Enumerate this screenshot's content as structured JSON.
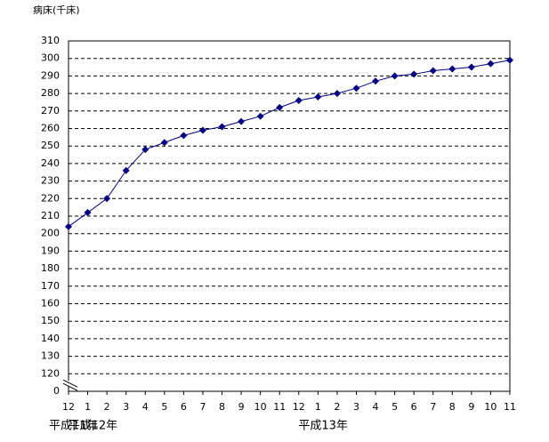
{
  "chart_data": {
    "type": "line",
    "y_axis_label": "病床(千床)",
    "categories": [
      "12",
      "1",
      "2",
      "3",
      "4",
      "5",
      "6",
      "7",
      "8",
      "9",
      "10",
      "11",
      "12",
      "1",
      "2",
      "3",
      "4",
      "5",
      "6",
      "7",
      "8",
      "9",
      "10",
      "11"
    ],
    "category_groups": [
      {
        "label": "平成11年",
        "start": 0
      },
      {
        "label": "平成12年",
        "start": 1
      },
      {
        "label": "平成13年",
        "start": 13
      }
    ],
    "series": [
      {
        "name": "病床",
        "color": "#000080",
        "values": [
          204,
          212,
          220,
          236,
          248,
          252,
          256,
          259,
          261,
          264,
          267,
          272,
          276,
          278,
          280,
          283,
          287,
          290,
          291,
          293,
          294,
          295,
          297,
          299
        ]
      }
    ],
    "ylim": [
      0,
      310
    ],
    "yticks": [
      0,
      120,
      130,
      140,
      150,
      160,
      170,
      180,
      190,
      200,
      210,
      220,
      230,
      240,
      250,
      260,
      270,
      280,
      290,
      300,
      310
    ],
    "axis_break": true,
    "grid": true
  }
}
